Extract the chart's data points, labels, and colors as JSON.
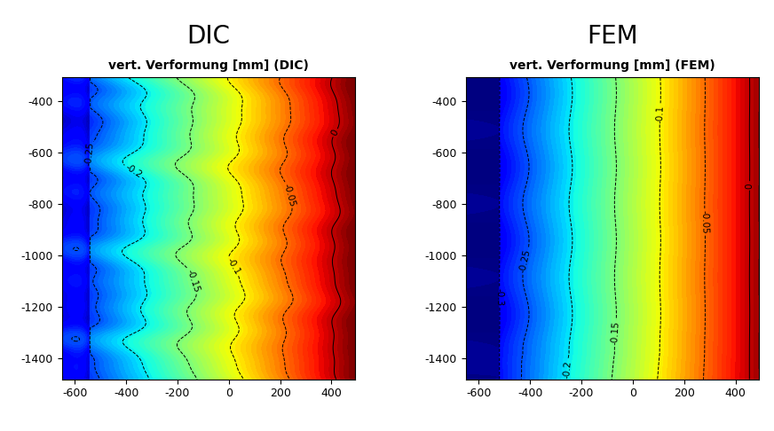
{
  "title_left": "DIC",
  "title_right": "FEM",
  "colorbar_label_left": "vert. Verformung [mm] (DIC)",
  "colorbar_label_right": "vert. Verformung [mm] (FEM)",
  "x_min": -650,
  "x_max": 490,
  "y_min": -1480,
  "y_max": -310,
  "x_ticks": [
    -600,
    -400,
    -200,
    0,
    200,
    400
  ],
  "y_ticks": [
    -400,
    -600,
    -800,
    -1000,
    -1200,
    -1400
  ],
  "contour_levels_dic": [
    -0.25,
    -0.2,
    -0.15,
    -0.1,
    -0.05,
    0.0
  ],
  "contour_levels_fem": [
    -0.3,
    -0.25,
    -0.2,
    -0.15,
    -0.1,
    -0.05,
    0.0
  ],
  "vmin": -0.32,
  "vmax": 0.02,
  "background_color": "#ffffff",
  "title_fontsize": 20,
  "label_fontsize": 10,
  "cmap": "jet"
}
